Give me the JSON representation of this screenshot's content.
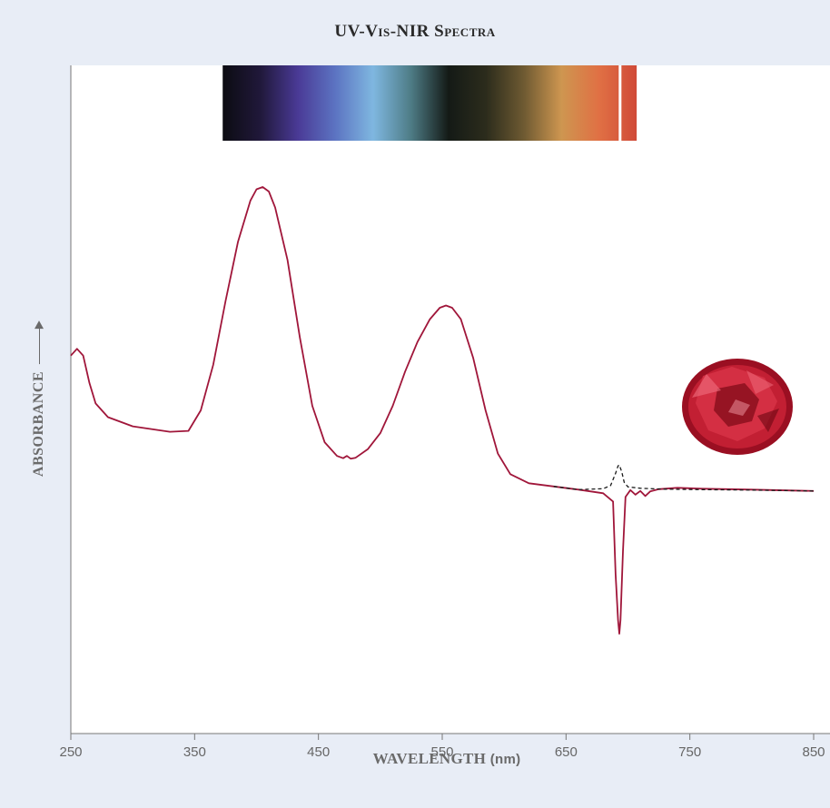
{
  "chart_data": {
    "type": "line",
    "title": "UV-Vis-NIR Spectra",
    "xlabel": "WAVELENGTH",
    "xlabel_unit": "(nm)",
    "ylabel": "ABSORBANCE",
    "xlim": [
      250,
      850
    ],
    "ylim": [
      0,
      1
    ],
    "x_ticks": [
      250,
      350,
      450,
      550,
      650,
      750,
      850
    ],
    "y_ticks": [],
    "grid": false,
    "legend": "none",
    "series": [
      {
        "color": "#a0163a",
        "style": "solid",
        "x": [
          250,
          255,
          260,
          265,
          270,
          280,
          300,
          330,
          345,
          355,
          365,
          375,
          385,
          395,
          400,
          405,
          410,
          415,
          425,
          435,
          445,
          455,
          465,
          470,
          473,
          476,
          480,
          490,
          500,
          510,
          520,
          530,
          540,
          548,
          553,
          558,
          565,
          575,
          585,
          595,
          605,
          620,
          640,
          660,
          680,
          688,
          690,
          692,
          693,
          694,
          696,
          698,
          702,
          706,
          710,
          714,
          718,
          725,
          740,
          760,
          800,
          850
        ],
        "y": [
          0.63,
          0.645,
          0.63,
          0.57,
          0.525,
          0.495,
          0.475,
          0.463,
          0.465,
          0.51,
          0.61,
          0.75,
          0.88,
          0.97,
          0.995,
          1.0,
          0.99,
          0.955,
          0.84,
          0.67,
          0.52,
          0.44,
          0.41,
          0.405,
          0.41,
          0.404,
          0.406,
          0.425,
          0.46,
          0.52,
          0.595,
          0.66,
          0.71,
          0.735,
          0.74,
          0.735,
          0.71,
          0.625,
          0.51,
          0.415,
          0.37,
          0.35,
          0.343,
          0.336,
          0.328,
          0.31,
          0.15,
          0.05,
          0.02,
          0.05,
          0.2,
          0.32,
          0.335,
          0.325,
          0.333,
          0.322,
          0.332,
          0.337,
          0.34,
          0.338,
          0.336,
          0.333
        ]
      },
      {
        "color": "#1a1a1a",
        "style": "dashed",
        "x": [
          640,
          660,
          680,
          686,
          690,
          692,
          693,
          695,
          697,
          700,
          710,
          730,
          760,
          800,
          850
        ],
        "y": [
          0.343,
          0.336,
          0.338,
          0.345,
          0.372,
          0.388,
          0.39,
          0.375,
          0.352,
          0.342,
          0.339,
          0.337,
          0.336,
          0.335,
          0.333
        ]
      }
    ],
    "spectrum_band": {
      "from_nm": 380,
      "to_nm": 710,
      "colors": [
        "#0c0c12",
        "#20183a",
        "#4a3a96",
        "#5c74c2",
        "#7fb7e0",
        "#4e7c86",
        "#141a16",
        "#2c2c1c",
        "#6e5a32",
        "#ce9650",
        "#e07044",
        "#d04a38"
      ]
    }
  }
}
